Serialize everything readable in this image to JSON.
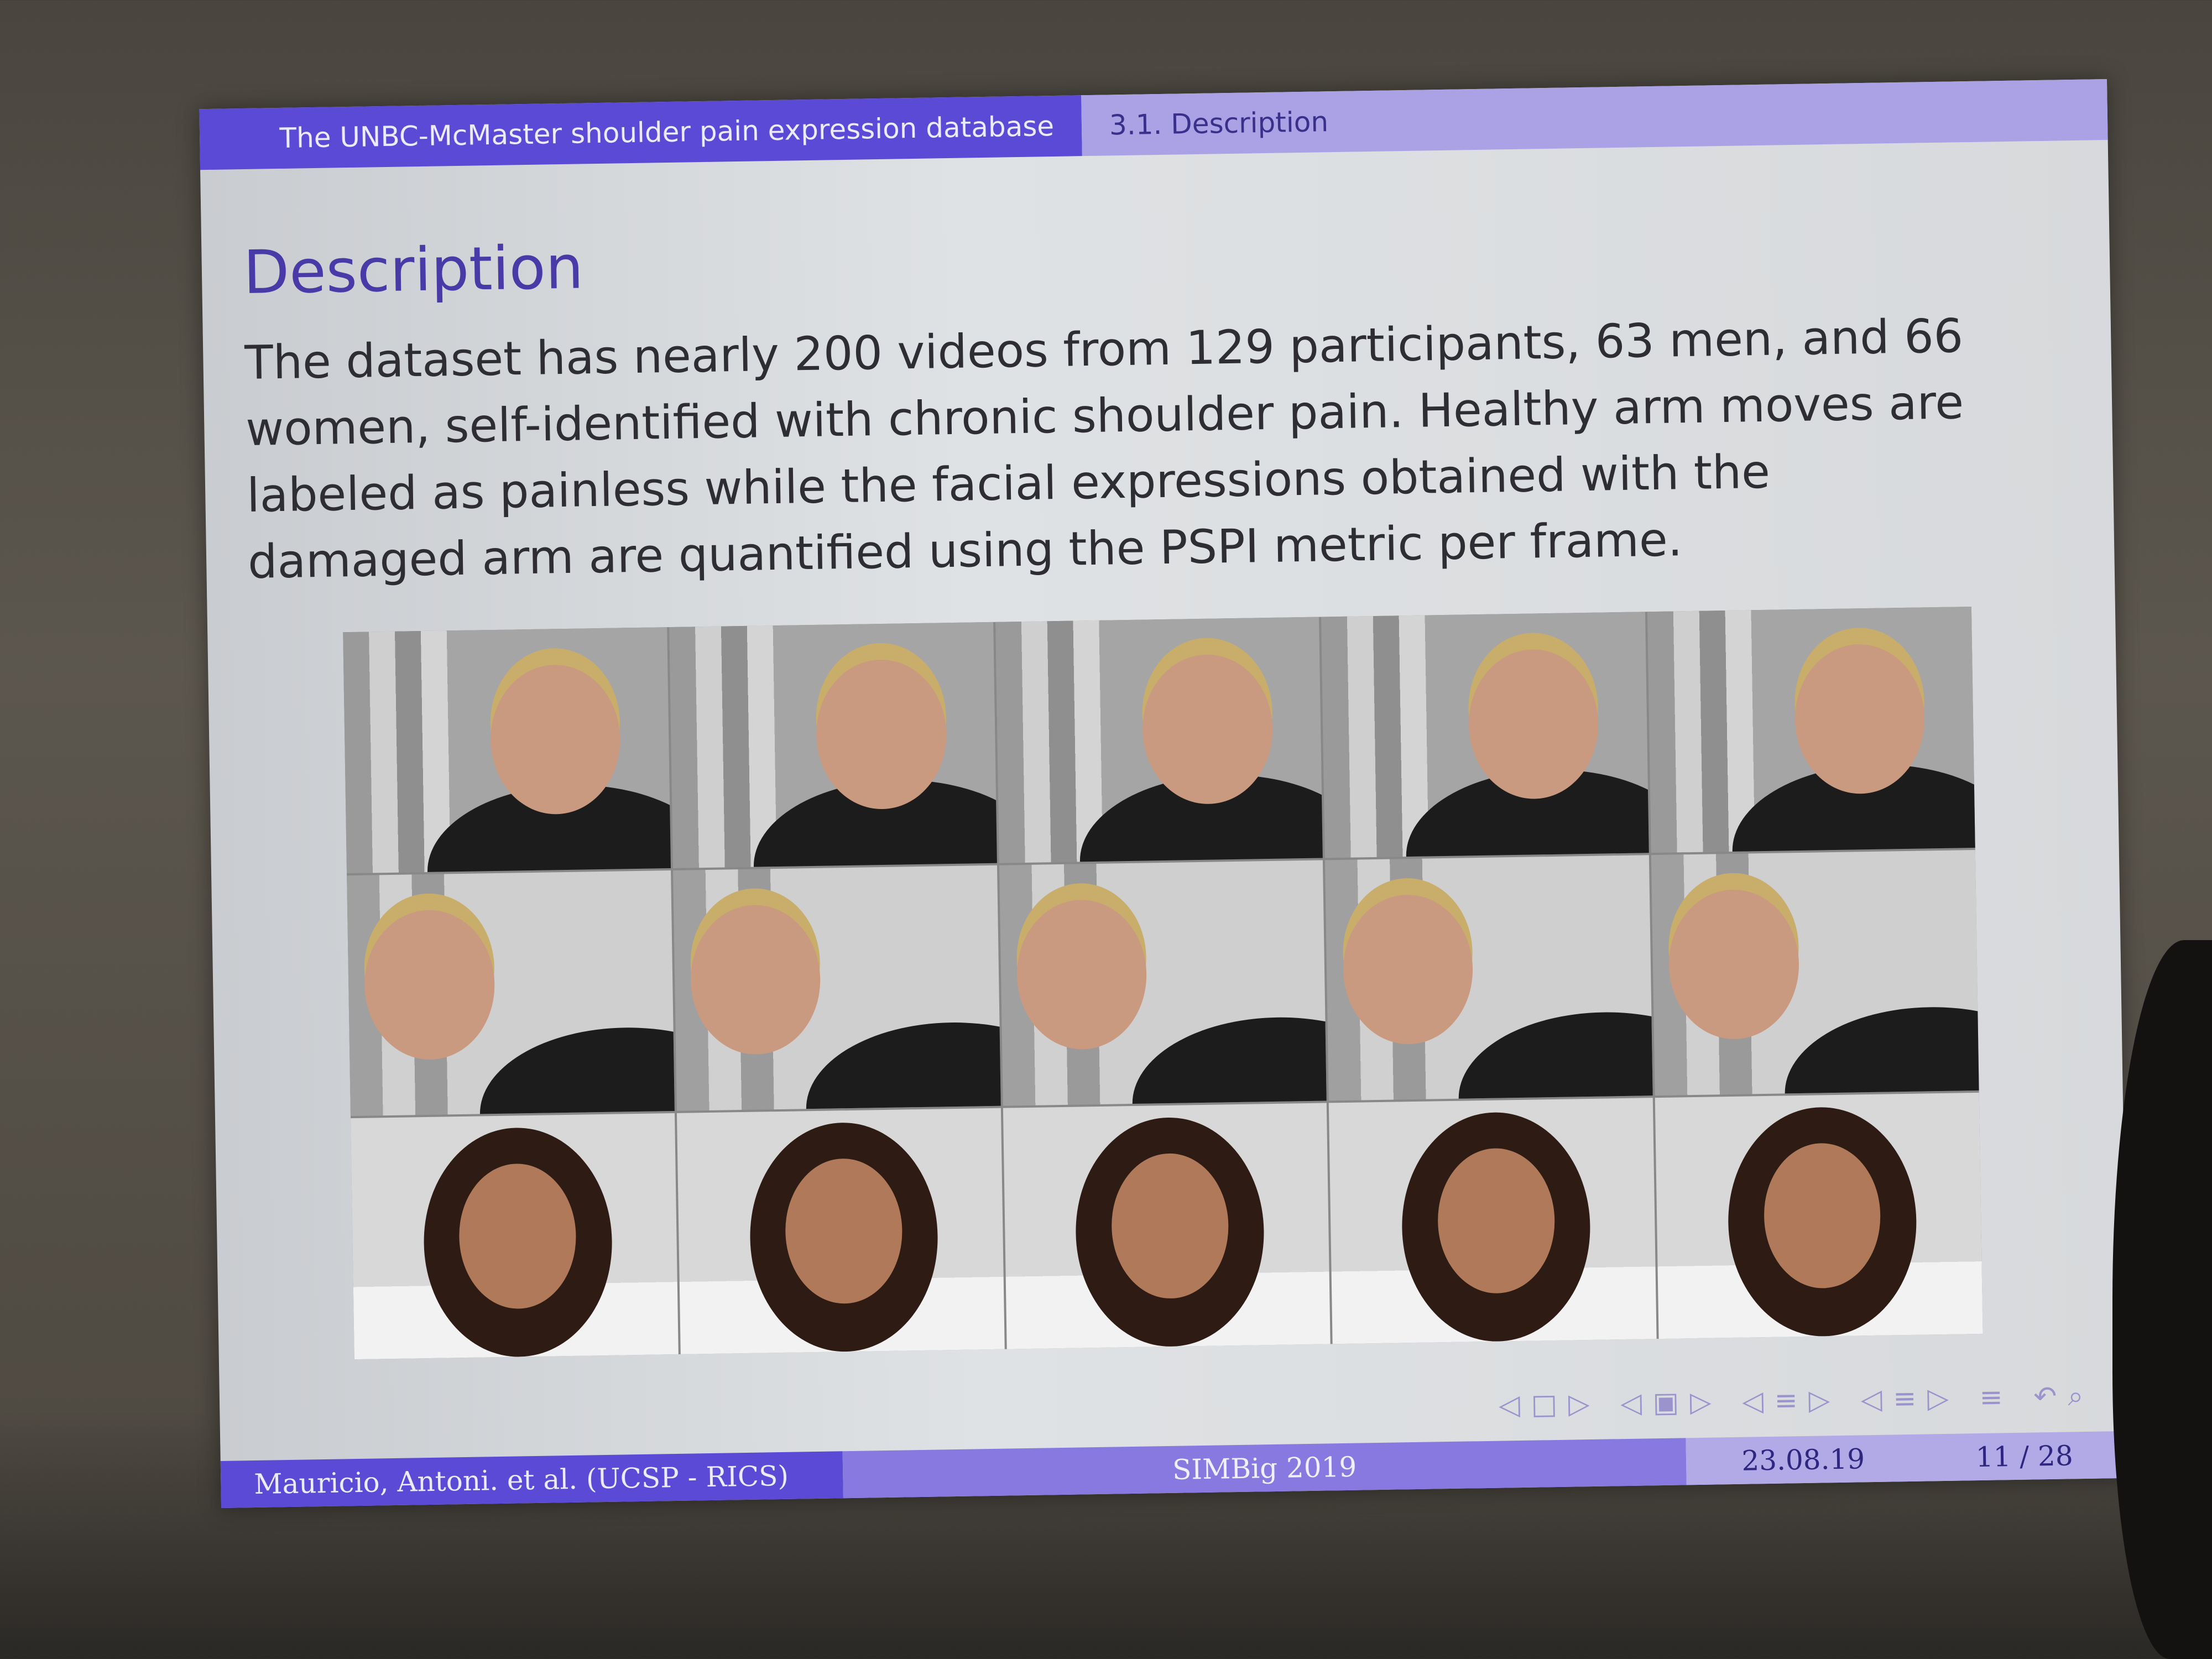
{
  "slide": {
    "header": {
      "section": "The UNBC-McMaster shoulder pain expression database",
      "subsection": "3.1. Description"
    },
    "title": "Description",
    "body": "The dataset has nearly 200 videos from 129 participants, 63 men, and 66 women, self-identified with chronic shoulder pain. Healthy arm moves are labeled as painless while the facial expressions obtained with the damaged arm are quantified using the PSPI metric per frame.",
    "footer": {
      "author": "Mauricio, Antoni. et al. (UCSP - RICS)",
      "event": "SIMBig 2019",
      "date": "23.08.19",
      "page": "11 / 28"
    }
  }
}
